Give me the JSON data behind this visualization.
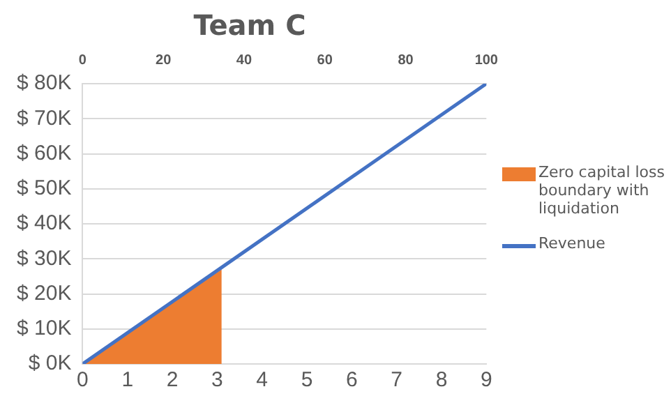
{
  "chart_data": {
    "type": "line",
    "title": "Team C",
    "series": [
      {
        "name": "Zero capital loss boundary with liquidation",
        "type": "area",
        "color": "#ed7d31",
        "x": [
          0,
          3.1
        ],
        "values": [
          0,
          27000
        ]
      },
      {
        "name": "Revenue",
        "color": "#4472c4",
        "x": [
          0,
          9
        ],
        "values": [
          0,
          80000
        ]
      }
    ],
    "xlim": [
      0,
      9
    ],
    "xticks": [
      0,
      1,
      2,
      3,
      4,
      5,
      6,
      7,
      8,
      9
    ],
    "x2lim": [
      0,
      100
    ],
    "x2ticks": [
      0,
      20,
      40,
      60,
      80,
      100
    ],
    "ylim": [
      0,
      80000
    ],
    "yticks": [
      {
        "value": 0,
        "label": "$ 0K"
      },
      {
        "value": 10000,
        "label": "$ 10K"
      },
      {
        "value": 20000,
        "label": "$ 20K"
      },
      {
        "value": 30000,
        "label": "$ 30K"
      },
      {
        "value": 40000,
        "label": "$ 40K"
      },
      {
        "value": 50000,
        "label": "$ 50K"
      },
      {
        "value": 60000,
        "label": "$ 60K"
      },
      {
        "value": 70000,
        "label": "$ 70K"
      },
      {
        "value": 80000,
        "label": "$ 80K"
      }
    ],
    "grid": "y",
    "legend": "right",
    "marker": "none",
    "line_style": "solid"
  }
}
